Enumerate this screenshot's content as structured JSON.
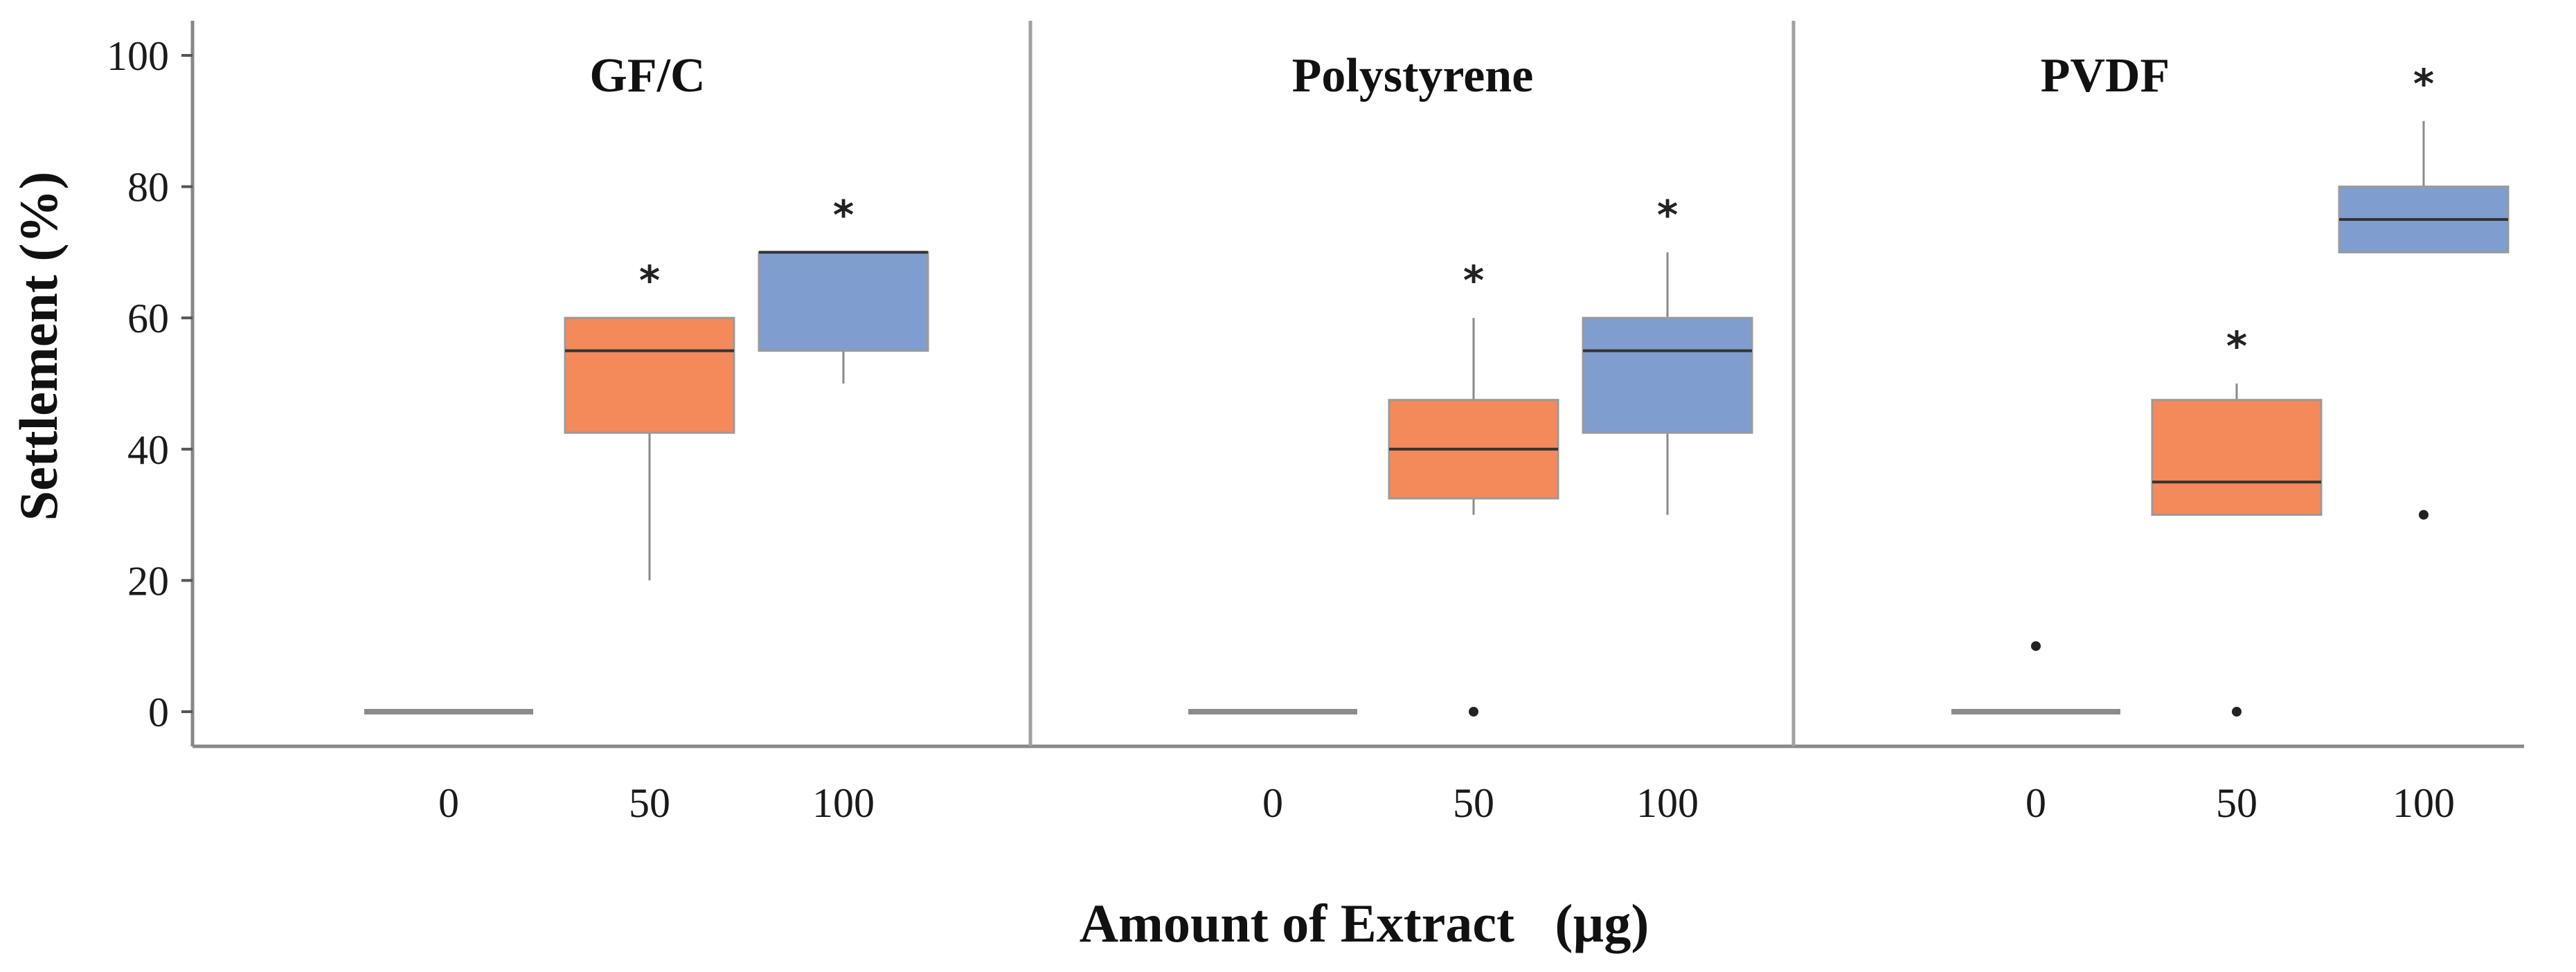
{
  "chart_data": {
    "type": "box",
    "xlabel": "Amount of Extract   (µg)",
    "ylabel": "Settlement (%)",
    "ylim": [
      0,
      100
    ],
    "y_ticks": [
      0,
      20,
      40,
      60,
      80,
      100
    ],
    "categories": [
      "0",
      "50",
      "100"
    ],
    "colors": {
      "0": "#8c8c8c",
      "50": "#f4895a",
      "100": "#7f9ecf"
    },
    "panels": [
      {
        "title": "GF/C",
        "boxes": [
          {
            "category": "0",
            "min": 0,
            "q1": 0,
            "median": 0,
            "q3": 0,
            "max": 0,
            "outliers": [],
            "significant": false
          },
          {
            "category": "50",
            "min": 20,
            "q1": 42.5,
            "median": 55,
            "q3": 60,
            "max": 60,
            "outliers": [],
            "significant": true
          },
          {
            "category": "100",
            "min": 50,
            "q1": 55,
            "median": 70,
            "q3": 70,
            "max": 70,
            "outliers": [],
            "significant": true
          }
        ]
      },
      {
        "title": "Polystyrene",
        "boxes": [
          {
            "category": "0",
            "min": 0,
            "q1": 0,
            "median": 0,
            "q3": 0,
            "max": 0,
            "outliers": [],
            "significant": false
          },
          {
            "category": "50",
            "min": 30,
            "q1": 32.5,
            "median": 40,
            "q3": 47.5,
            "max": 60,
            "outliers": [
              0
            ],
            "significant": true
          },
          {
            "category": "100",
            "min": 30,
            "q1": 42.5,
            "median": 55,
            "q3": 60,
            "max": 70,
            "outliers": [],
            "significant": true
          }
        ]
      },
      {
        "title": "PVDF",
        "boxes": [
          {
            "category": "0",
            "min": 0,
            "q1": 0,
            "median": 0,
            "q3": 0,
            "max": 0,
            "outliers": [
              10
            ],
            "significant": false
          },
          {
            "category": "50",
            "min": 30,
            "q1": 30,
            "median": 35,
            "q3": 47.5,
            "max": 50,
            "outliers": [
              0
            ],
            "significant": true
          },
          {
            "category": "100",
            "min": 70,
            "q1": 70,
            "median": 75,
            "q3": 80,
            "max": 90,
            "outliers": [
              30
            ],
            "significant": true
          }
        ]
      }
    ],
    "significance_marker": "*"
  }
}
